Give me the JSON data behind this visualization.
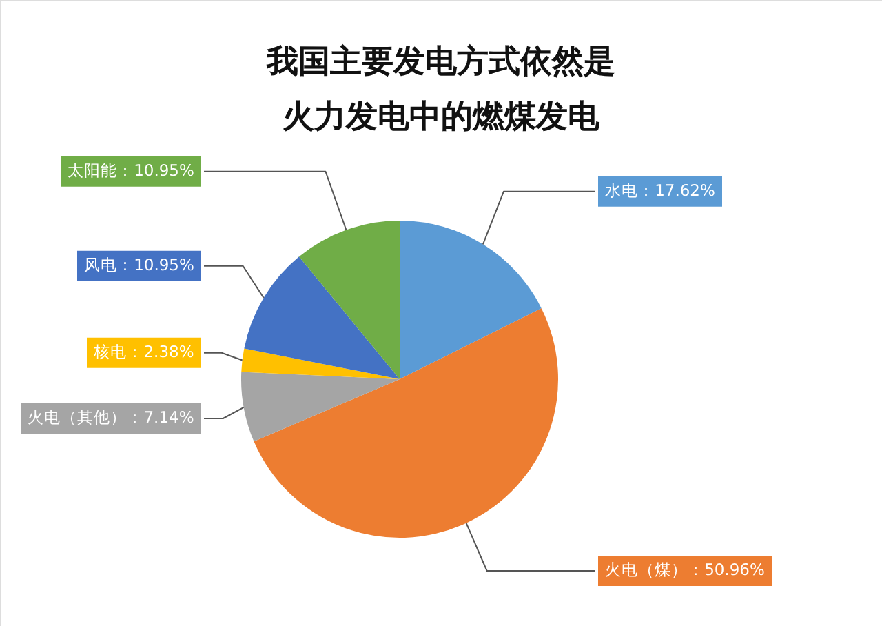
{
  "chart_data": {
    "type": "pie",
    "title": [
      "我国主要发电方式依然是",
      "火力发电中的燃煤发电"
    ],
    "categories": [
      "水电",
      "火电（煤）",
      "火电（其他）",
      "核电",
      "风电",
      "太阳能"
    ],
    "values": [
      17.62,
      50.96,
      7.14,
      2.38,
      10.95,
      10.95
    ],
    "value_labels": [
      "17.62%",
      "50.96%",
      "7.14%",
      "2.38%",
      "10.95%",
      "10.95%"
    ],
    "colors": [
      "#5b9bd5",
      "#ed7d31",
      "#a5a5a5",
      "#ffc000",
      "#4472c4",
      "#70ad47"
    ]
  }
}
